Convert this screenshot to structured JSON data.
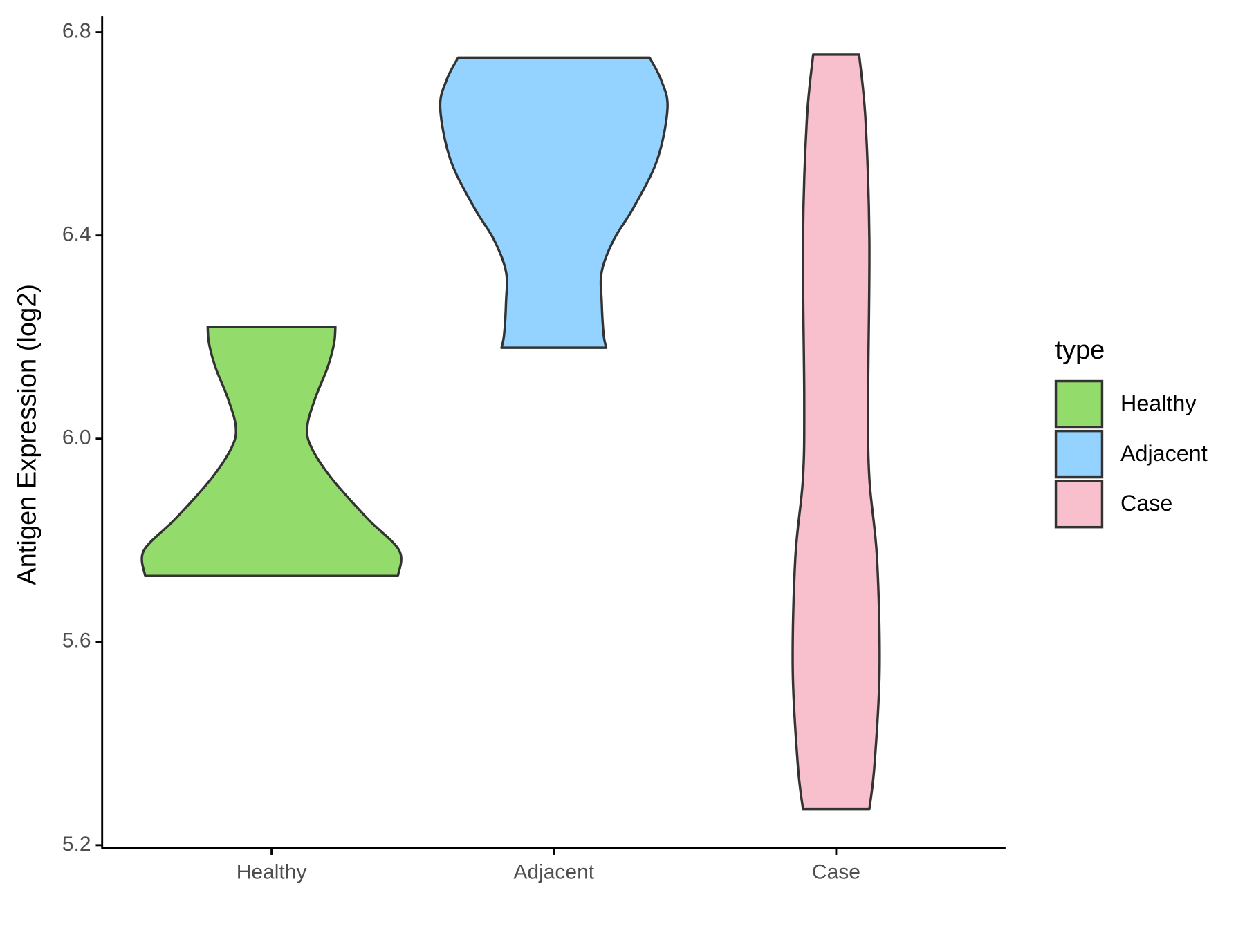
{
  "chart_data": {
    "type": "violin",
    "y_label": "Antigen Expression (log2)",
    "categories": [
      "Healthy",
      "Adjacent",
      "Case"
    ],
    "legend_title": "type",
    "legend_position": "right",
    "ylim": [
      5.195,
      6.832
    ],
    "yticks": [
      {
        "value": 5.2,
        "label": "5.2"
      },
      {
        "value": 5.6,
        "label": "5.6"
      },
      {
        "value": 6.0,
        "label": "6.0"
      },
      {
        "value": 6.4,
        "label": "6.4"
      },
      {
        "value": 6.8,
        "label": "6.8"
      }
    ],
    "series": [
      {
        "name": "Healthy",
        "color": "#93db6b",
        "y": [
          5.73,
          5.78,
          5.843,
          5.922,
          5.984,
          6.024,
          6.078,
          6.141,
          6.188,
          6.22
        ],
        "density": [
          0.99,
          1.0,
          0.75,
          0.47,
          0.31,
          0.28,
          0.34,
          0.44,
          0.49,
          0.5
        ]
      },
      {
        "name": "Adjacent",
        "color": "#94d2ff",
        "y": [
          6.179,
          6.204,
          6.267,
          6.329,
          6.392,
          6.455,
          6.549,
          6.651,
          6.706,
          6.75
        ],
        "density": [
          0.41,
          0.39,
          0.375,
          0.375,
          0.47,
          0.625,
          0.81,
          0.89,
          0.84,
          0.75
        ]
      },
      {
        "name": "Case",
        "color": "#f7c0cc",
        "y": [
          5.271,
          5.357,
          5.545,
          5.765,
          5.922,
          6.078,
          6.392,
          6.627,
          6.756
        ],
        "density": [
          0.26,
          0.3,
          0.34,
          0.32,
          0.26,
          0.25,
          0.26,
          0.23,
          0.18
        ]
      }
    ]
  }
}
